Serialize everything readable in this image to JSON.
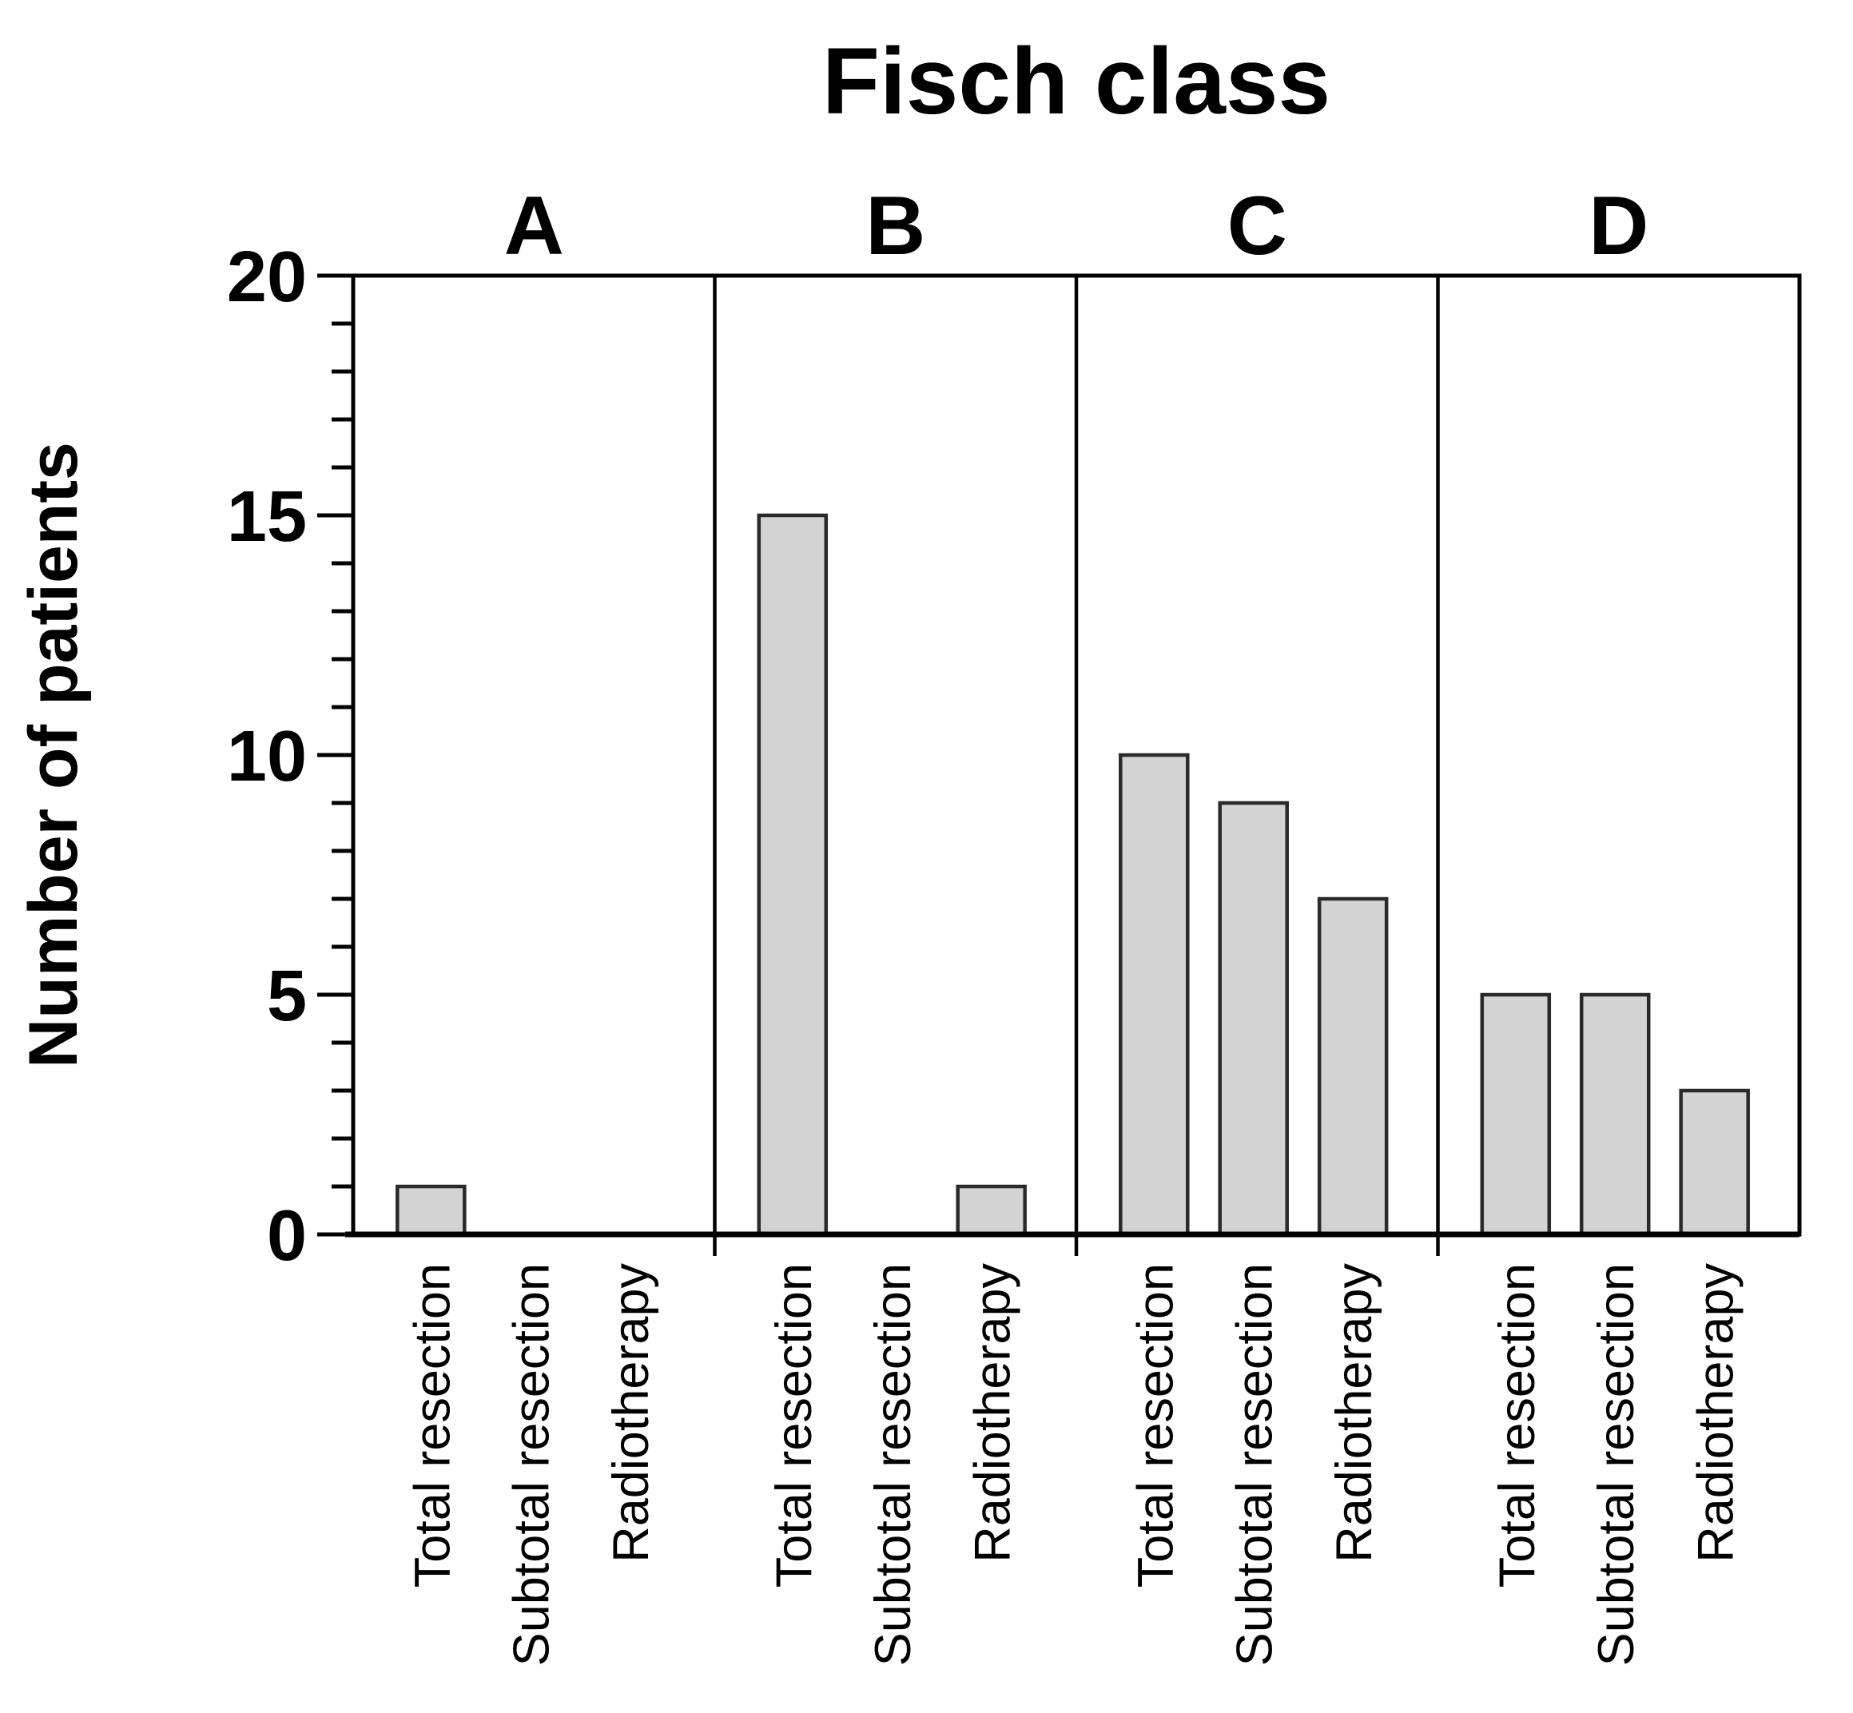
{
  "chart_data": {
    "type": "bar",
    "title": "Fisch class",
    "ylabel": "Number of patients",
    "xlabel": "",
    "ylim": [
      0,
      20
    ],
    "ytick_major": [
      0,
      5,
      10,
      15,
      20
    ],
    "ytick_minor_step": 1,
    "grid": false,
    "legend_position": "none",
    "panels": [
      "A",
      "B",
      "C",
      "D"
    ],
    "categories": [
      "Total resection",
      "Subtotal resection",
      "Radiotherapy"
    ],
    "series": [
      {
        "name": "A",
        "values": [
          1,
          0,
          0
        ]
      },
      {
        "name": "B",
        "values": [
          15,
          0,
          1
        ]
      },
      {
        "name": "C",
        "values": [
          10,
          9,
          7
        ]
      },
      {
        "name": "D",
        "values": [
          5,
          5,
          3
        ]
      }
    ],
    "colors": {
      "bar_fill": "#d3d3d3",
      "bar_stroke": "#2a2a2a",
      "axis": "#000000",
      "text": "#000000",
      "background": "#ffffff"
    }
  }
}
